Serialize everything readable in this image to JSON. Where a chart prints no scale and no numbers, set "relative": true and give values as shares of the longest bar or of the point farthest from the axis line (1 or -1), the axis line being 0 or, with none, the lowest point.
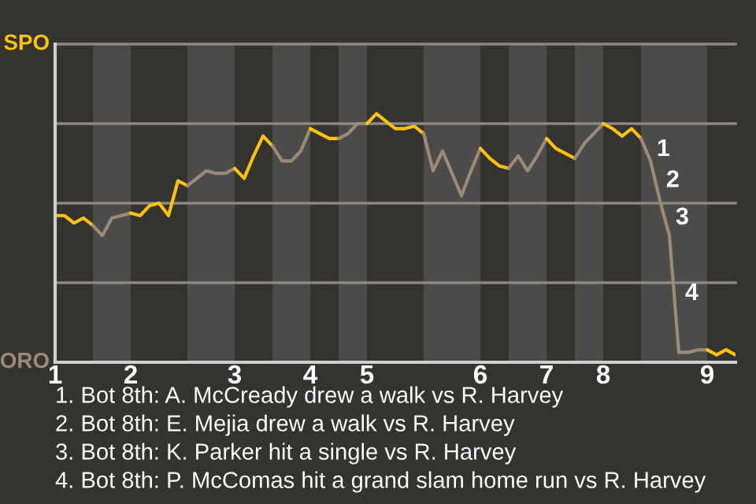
{
  "chart_data": {
    "type": "line",
    "relative": true,
    "categories": [
      "1",
      null,
      null,
      null,
      null,
      null,
      null,
      null,
      "2",
      null,
      null,
      null,
      null,
      null,
      null,
      null,
      null,
      null,
      null,
      "3",
      null,
      null,
      null,
      null,
      null,
      null,
      null,
      "4",
      null,
      null,
      null,
      null,
      null,
      "5",
      null,
      null,
      null,
      null,
      null,
      null,
      null,
      null,
      null,
      null,
      null,
      "6",
      null,
      null,
      null,
      null,
      null,
      null,
      "7",
      null,
      null,
      null,
      null,
      null,
      "8",
      null,
      null,
      null,
      null,
      null,
      null,
      null,
      null,
      null,
      null,
      "9",
      null,
      null,
      null
    ],
    "line_style": "solid",
    "marker": "none",
    "ylabel": "ORO",
    "ref_lines": [
      {
        "axis": "y",
        "value": 0.32,
        "color": "#8a8785"
      },
      {
        "axis": "y",
        "value": 0.64,
        "color": "#8a8785"
      },
      {
        "axis": "y",
        "value": 0.96,
        "color": "#8a8785"
      },
      {
        "axis": "y",
        "value": 1.28,
        "label": "SPO",
        "color": "#8a8785"
      }
    ],
    "series": [
      {
        "color": "#ffc20e",
        "values": [
          0.59,
          0.59,
          0.56,
          0.58,
          0.55,
          null,
          null,
          null,
          null,
          null,
          null,
          null,
          null,
          null,
          null,
          null,
          null,
          null,
          null,
          null,
          null,
          null,
          null,
          null,
          null,
          null,
          null,
          null,
          null,
          null,
          null,
          null,
          null,
          null,
          null,
          null,
          null,
          null,
          null,
          null,
          null,
          null,
          null,
          null,
          null,
          null,
          null,
          null,
          null,
          null,
          null,
          null,
          null,
          null,
          null,
          null,
          null,
          null,
          null,
          null,
          null,
          null,
          null,
          null,
          null,
          null,
          null,
          null,
          null,
          null,
          null,
          null,
          null
        ]
      },
      {
        "color": "#9c8a78",
        "values": [
          null,
          null,
          null,
          null,
          0.55,
          0.51,
          0.58,
          0.59,
          0.6,
          null,
          null,
          null,
          null,
          null,
          null,
          null,
          null,
          null,
          null,
          null,
          null,
          null,
          null,
          null,
          null,
          null,
          null,
          null,
          null,
          null,
          null,
          null,
          null,
          null,
          null,
          null,
          null,
          null,
          null,
          null,
          null,
          null,
          null,
          null,
          null,
          null,
          null,
          null,
          null,
          null,
          null,
          null,
          null,
          null,
          null,
          null,
          null,
          null,
          null,
          null,
          null,
          null,
          null,
          null,
          null,
          null,
          null,
          null,
          null,
          null,
          null,
          null,
          null
        ]
      },
      {
        "color": "#ffc20e",
        "values": [
          null,
          null,
          null,
          null,
          null,
          null,
          null,
          null,
          0.6,
          0.59,
          0.63,
          0.64,
          0.59,
          0.73,
          0.71,
          null,
          null,
          null,
          null,
          null,
          null,
          null,
          null,
          null,
          null,
          null,
          null,
          null,
          null,
          null,
          null,
          null,
          null,
          null,
          null,
          null,
          null,
          null,
          null,
          null,
          null,
          null,
          null,
          null,
          null,
          null,
          null,
          null,
          null,
          null,
          null,
          null,
          null,
          null,
          null,
          null,
          null,
          null,
          null,
          null,
          null,
          null,
          null,
          null,
          null,
          null,
          null,
          null,
          null,
          null,
          null,
          null,
          null
        ]
      },
      {
        "color": "#9c8a78",
        "values": [
          null,
          null,
          null,
          null,
          null,
          null,
          null,
          null,
          null,
          null,
          null,
          null,
          null,
          null,
          0.71,
          0.74,
          0.77,
          0.76,
          0.76,
          0.78,
          null,
          null,
          null,
          null,
          null,
          null,
          null,
          null,
          null,
          null,
          null,
          null,
          null,
          null,
          null,
          null,
          null,
          null,
          null,
          null,
          null,
          null,
          null,
          null,
          null,
          null,
          null,
          null,
          null,
          null,
          null,
          null,
          null,
          null,
          null,
          null,
          null,
          null,
          null,
          null,
          null,
          null,
          null,
          null,
          null,
          null,
          null,
          null,
          null,
          null,
          null,
          null,
          null
        ]
      },
      {
        "color": "#ffc20e",
        "values": [
          null,
          null,
          null,
          null,
          null,
          null,
          null,
          null,
          null,
          null,
          null,
          null,
          null,
          null,
          null,
          null,
          null,
          null,
          null,
          0.78,
          0.74,
          0.83,
          0.91,
          0.87,
          null,
          null,
          null,
          null,
          null,
          null,
          null,
          null,
          null,
          null,
          null,
          null,
          null,
          null,
          null,
          null,
          null,
          null,
          null,
          null,
          null,
          null,
          null,
          null,
          null,
          null,
          null,
          null,
          null,
          null,
          null,
          null,
          null,
          null,
          null,
          null,
          null,
          null,
          null,
          null,
          null,
          null,
          null,
          null,
          null,
          null,
          null,
          null,
          null
        ]
      },
      {
        "color": "#9c8a78",
        "values": [
          null,
          null,
          null,
          null,
          null,
          null,
          null,
          null,
          null,
          null,
          null,
          null,
          null,
          null,
          null,
          null,
          null,
          null,
          null,
          null,
          null,
          null,
          null,
          0.87,
          0.81,
          0.81,
          0.85,
          0.94,
          null,
          null,
          null,
          null,
          null,
          null,
          null,
          null,
          null,
          null,
          null,
          null,
          null,
          null,
          null,
          null,
          null,
          null,
          null,
          null,
          null,
          null,
          null,
          null,
          null,
          null,
          null,
          null,
          null,
          null,
          null,
          null,
          null,
          null,
          null,
          null,
          null,
          null,
          null,
          null,
          null,
          null,
          null,
          null,
          null
        ]
      },
      {
        "color": "#ffc20e",
        "values": [
          null,
          null,
          null,
          null,
          null,
          null,
          null,
          null,
          null,
          null,
          null,
          null,
          null,
          null,
          null,
          null,
          null,
          null,
          null,
          null,
          null,
          null,
          null,
          null,
          null,
          null,
          null,
          0.94,
          0.92,
          0.9,
          0.9,
          null,
          null,
          null,
          null,
          null,
          null,
          null,
          null,
          null,
          null,
          null,
          null,
          null,
          null,
          null,
          null,
          null,
          null,
          null,
          null,
          null,
          null,
          null,
          null,
          null,
          null,
          null,
          null,
          null,
          null,
          null,
          null,
          null,
          null,
          null,
          null,
          null,
          null,
          null,
          null,
          null,
          null
        ]
      },
      {
        "color": "#9c8a78",
        "values": [
          null,
          null,
          null,
          null,
          null,
          null,
          null,
          null,
          null,
          null,
          null,
          null,
          null,
          null,
          null,
          null,
          null,
          null,
          null,
          null,
          null,
          null,
          null,
          null,
          null,
          null,
          null,
          null,
          null,
          null,
          0.9,
          0.92,
          0.96,
          0.96,
          null,
          null,
          null,
          null,
          null,
          null,
          null,
          null,
          null,
          null,
          null,
          null,
          null,
          null,
          null,
          null,
          null,
          null,
          null,
          null,
          null,
          null,
          null,
          null,
          null,
          null,
          null,
          null,
          null,
          null,
          null,
          null,
          null,
          null,
          null,
          null,
          null,
          null,
          null
        ]
      },
      {
        "color": "#ffc20e",
        "values": [
          null,
          null,
          null,
          null,
          null,
          null,
          null,
          null,
          null,
          null,
          null,
          null,
          null,
          null,
          null,
          null,
          null,
          null,
          null,
          null,
          null,
          null,
          null,
          null,
          null,
          null,
          null,
          null,
          null,
          null,
          null,
          null,
          null,
          0.96,
          1,
          0.97,
          0.94,
          0.94,
          0.95,
          0.92,
          null,
          null,
          null,
          null,
          null,
          null,
          null,
          null,
          null,
          null,
          null,
          null,
          null,
          null,
          null,
          null,
          null,
          null,
          null,
          null,
          null,
          null,
          null,
          null,
          null,
          null,
          null,
          null,
          null,
          null,
          null,
          null,
          null
        ]
      },
      {
        "color": "#9c8a78",
        "values": [
          null,
          null,
          null,
          null,
          null,
          null,
          null,
          null,
          null,
          null,
          null,
          null,
          null,
          null,
          null,
          null,
          null,
          null,
          null,
          null,
          null,
          null,
          null,
          null,
          null,
          null,
          null,
          null,
          null,
          null,
          null,
          null,
          null,
          null,
          null,
          null,
          null,
          null,
          null,
          0.92,
          0.77,
          0.85,
          0.76,
          0.67,
          0.77,
          0.86,
          null,
          null,
          null,
          null,
          null,
          null,
          null,
          null,
          null,
          null,
          null,
          null,
          null,
          null,
          null,
          null,
          null,
          null,
          null,
          null,
          null,
          null,
          null,
          null,
          null,
          null,
          null
        ]
      },
      {
        "color": "#ffc20e",
        "values": [
          null,
          null,
          null,
          null,
          null,
          null,
          null,
          null,
          null,
          null,
          null,
          null,
          null,
          null,
          null,
          null,
          null,
          null,
          null,
          null,
          null,
          null,
          null,
          null,
          null,
          null,
          null,
          null,
          null,
          null,
          null,
          null,
          null,
          null,
          null,
          null,
          null,
          null,
          null,
          null,
          null,
          null,
          null,
          null,
          null,
          0.86,
          0.82,
          0.79,
          0.78,
          null,
          null,
          null,
          null,
          null,
          null,
          null,
          null,
          null,
          null,
          null,
          null,
          null,
          null,
          null,
          null,
          null,
          null,
          null,
          null,
          null,
          null,
          null,
          null
        ]
      },
      {
        "color": "#9c8a78",
        "values": [
          null,
          null,
          null,
          null,
          null,
          null,
          null,
          null,
          null,
          null,
          null,
          null,
          null,
          null,
          null,
          null,
          null,
          null,
          null,
          null,
          null,
          null,
          null,
          null,
          null,
          null,
          null,
          null,
          null,
          null,
          null,
          null,
          null,
          null,
          null,
          null,
          null,
          null,
          null,
          null,
          null,
          null,
          null,
          null,
          null,
          null,
          null,
          null,
          0.78,
          0.83,
          0.77,
          0.83,
          0.9,
          null,
          null,
          null,
          null,
          null,
          null,
          null,
          null,
          null,
          null,
          null,
          null,
          null,
          null,
          null,
          null,
          null,
          null,
          null,
          null
        ]
      },
      {
        "color": "#ffc20e",
        "values": [
          null,
          null,
          null,
          null,
          null,
          null,
          null,
          null,
          null,
          null,
          null,
          null,
          null,
          null,
          null,
          null,
          null,
          null,
          null,
          null,
          null,
          null,
          null,
          null,
          null,
          null,
          null,
          null,
          null,
          null,
          null,
          null,
          null,
          null,
          null,
          null,
          null,
          null,
          null,
          null,
          null,
          null,
          null,
          null,
          null,
          null,
          null,
          null,
          null,
          null,
          null,
          null,
          0.9,
          0.86,
          0.84,
          0.82,
          null,
          null,
          null,
          null,
          null,
          null,
          null,
          null,
          null,
          null,
          null,
          null,
          null,
          null,
          null,
          null,
          null
        ]
      },
      {
        "color": "#9c8a78",
        "values": [
          null,
          null,
          null,
          null,
          null,
          null,
          null,
          null,
          null,
          null,
          null,
          null,
          null,
          null,
          null,
          null,
          null,
          null,
          null,
          null,
          null,
          null,
          null,
          null,
          null,
          null,
          null,
          null,
          null,
          null,
          null,
          null,
          null,
          null,
          null,
          null,
          null,
          null,
          null,
          null,
          null,
          null,
          null,
          null,
          null,
          null,
          null,
          null,
          null,
          null,
          null,
          null,
          null,
          null,
          null,
          0.82,
          0.88,
          0.92,
          0.96,
          null,
          null,
          null,
          null,
          null,
          null,
          null,
          null,
          null,
          null,
          null,
          null,
          null,
          null
        ]
      },
      {
        "color": "#ffc20e",
        "values": [
          null,
          null,
          null,
          null,
          null,
          null,
          null,
          null,
          null,
          null,
          null,
          null,
          null,
          null,
          null,
          null,
          null,
          null,
          null,
          null,
          null,
          null,
          null,
          null,
          null,
          null,
          null,
          null,
          null,
          null,
          null,
          null,
          null,
          null,
          null,
          null,
          null,
          null,
          null,
          null,
          null,
          null,
          null,
          null,
          null,
          null,
          null,
          null,
          null,
          null,
          null,
          null,
          null,
          null,
          null,
          null,
          null,
          null,
          0.96,
          0.94,
          0.91,
          0.94,
          0.9,
          null,
          null,
          null,
          null,
          null,
          null,
          null,
          null,
          null,
          null
        ]
      },
      {
        "color": "#9c8a78",
        "values": [
          null,
          null,
          null,
          null,
          null,
          null,
          null,
          null,
          null,
          null,
          null,
          null,
          null,
          null,
          null,
          null,
          null,
          null,
          null,
          null,
          null,
          null,
          null,
          null,
          null,
          null,
          null,
          null,
          null,
          null,
          null,
          null,
          null,
          null,
          null,
          null,
          null,
          null,
          null,
          null,
          null,
          null,
          null,
          null,
          null,
          null,
          null,
          null,
          null,
          null,
          null,
          null,
          null,
          null,
          null,
          null,
          null,
          null,
          null,
          null,
          null,
          null,
          0.9,
          0.81,
          0.65,
          0.51,
          0.04,
          0.04,
          0.05,
          0.05,
          null,
          null,
          null
        ]
      },
      {
        "color": "#ffc20e",
        "values": [
          null,
          null,
          null,
          null,
          null,
          null,
          null,
          null,
          null,
          null,
          null,
          null,
          null,
          null,
          null,
          null,
          null,
          null,
          null,
          null,
          null,
          null,
          null,
          null,
          null,
          null,
          null,
          null,
          null,
          null,
          null,
          null,
          null,
          null,
          null,
          null,
          null,
          null,
          null,
          null,
          null,
          null,
          null,
          null,
          null,
          null,
          null,
          null,
          null,
          null,
          null,
          null,
          null,
          null,
          null,
          null,
          null,
          null,
          null,
          null,
          null,
          null,
          null,
          null,
          null,
          null,
          null,
          null,
          null,
          0.05,
          0.03,
          0.05,
          0.03
        ]
      }
    ],
    "annotations": [
      "1",
      "2",
      "3",
      "4",
      "1. Bot 8th: A. McCready drew a walk vs R. Harvey",
      "2. Bot 8th: E. Mejia drew a walk vs R. Harvey",
      "3. Bot 8th: K. Parker hit a single vs R. Harvey",
      "4. Bot 8th: P. McComas hit a grand slam home run vs R. Harvey"
    ]
  }
}
